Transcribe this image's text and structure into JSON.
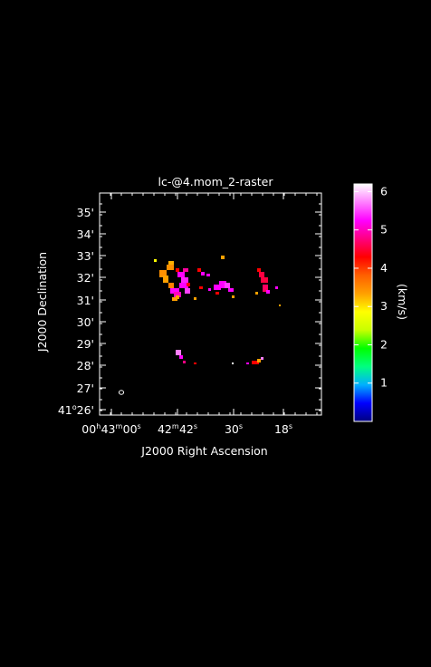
{
  "title": "lc-@4.mom_2-raster",
  "xlabel": "J2000 Right Ascension",
  "ylabel": "J2000 Declination",
  "colorbar_label": "(km/s)",
  "colors": {
    "background": "#000000",
    "axes": "#ffffff",
    "colormap": [
      "#000080",
      "#0000ff",
      "#00b0ff",
      "#00ff80",
      "#00ff00",
      "#c8ff00",
      "#ffff00",
      "#ffa000",
      "#ff6000",
      "#ff0000",
      "#ff0080",
      "#ff00ff",
      "#ff80ff",
      "#ffffff"
    ]
  },
  "ra_ticks": [
    {
      "h": "00",
      "m": "43",
      "s": "00",
      "show_h": true,
      "show_m": true
    },
    {
      "h": "",
      "m": "42",
      "s": "42",
      "show_h": false,
      "show_m": true
    },
    {
      "h": "",
      "m": "",
      "s": "30",
      "show_h": false,
      "show_m": false
    },
    {
      "h": "",
      "m": "",
      "s": "18",
      "show_h": false,
      "show_m": false
    }
  ],
  "dec_ticks": [
    {
      "label": "35'"
    },
    {
      "label": "34'"
    },
    {
      "label": "33'"
    },
    {
      "label": "32'"
    },
    {
      "label": "31'"
    },
    {
      "label": "30'"
    },
    {
      "label": "29'"
    },
    {
      "label": "28'"
    },
    {
      "label": "27'"
    },
    {
      "label": "41°26'",
      "deg": "41",
      "min": "26'"
    }
  ],
  "colorbar_ticks": [
    "1",
    "2",
    "3",
    "4",
    "5",
    "6"
  ],
  "colorbar_range": [
    0,
    6.2
  ]
}
